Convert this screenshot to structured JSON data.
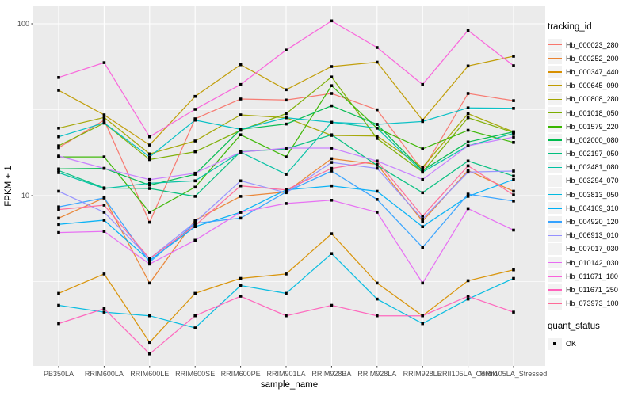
{
  "chart_data": {
    "type": "line",
    "title": "",
    "xlabel": "sample_name",
    "ylabel": "FPKM + 1",
    "y_scale": "log10",
    "ylim": [
      1.02,
      118
    ],
    "y_ticks": [
      "100",
      "10"
    ],
    "y_tick_values": [
      100,
      10
    ],
    "y_minor_tick_values": [
      31.6,
      3.16
    ],
    "grid": true,
    "panel_bg": "#EBEBEB",
    "grid_color": "#FFFFFF",
    "marker": {
      "shape": "square",
      "color": "#000000",
      "size": 4
    },
    "legend_title": "tracking_id",
    "legend_position": "right",
    "legend2_title": "quant_status",
    "legend2_items": [
      {
        "label": "OK",
        "marker": "black-square"
      }
    ],
    "x_categories": [
      "PB350LA",
      "RRIM600LA",
      "RRIM600LE",
      "RRIM600SE",
      "RRIM600PE",
      "RRIM901LA",
      "RRIM928BA",
      "RRIM928LA",
      "RRIM928LE",
      "RRII105LA_Control",
      "RRII105LA_Stressed"
    ],
    "series": [
      {
        "name": "Hb_000023_280",
        "color": "#F8766D",
        "values": [
          19.0,
          27.5,
          7.0,
          28.0,
          36.5,
          36.0,
          39.3,
          31.6,
          14.0,
          39.3,
          35.7
        ]
      },
      {
        "name": "Hb_000252_200",
        "color": "#EA8331",
        "values": [
          7.4,
          9.7,
          3.1,
          7.2,
          9.9,
          10.5,
          16.4,
          15.2,
          7.1,
          14.0,
          10.6
        ]
      },
      {
        "name": "Hb_000347_440",
        "color": "#D89000",
        "values": [
          2.7,
          3.5,
          1.4,
          2.7,
          3.3,
          3.5,
          6.0,
          3.1,
          2.0,
          3.2,
          3.7
        ]
      },
      {
        "name": "Hb_000645_090",
        "color": "#C09B00",
        "values": [
          41.0,
          29.5,
          19.7,
          37.8,
          57.8,
          41.3,
          56.4,
          59.8,
          27.5,
          56.8,
          64.7
        ]
      },
      {
        "name": "Hb_000808_280",
        "color": "#A3A500",
        "values": [
          24.7,
          28.5,
          17.5,
          20.8,
          29.5,
          28.4,
          22.4,
          22.2,
          14.6,
          30.0,
          23.5
        ]
      },
      {
        "name": "Hb_001018_050",
        "color": "#7CAE00",
        "values": [
          19.5,
          26.4,
          16.2,
          18.0,
          24.0,
          30.0,
          49.0,
          21.5,
          13.7,
          28.4,
          23.3
        ]
      },
      {
        "name": "Hb_001579_220",
        "color": "#39B600",
        "values": [
          16.8,
          16.8,
          8.0,
          11.2,
          22.6,
          16.8,
          43.6,
          24.7,
          18.7,
          24.0,
          20.4
        ]
      },
      {
        "name": "Hb_002000_080",
        "color": "#00BB4E",
        "values": [
          14.3,
          14.4,
          11.5,
          13.3,
          24.3,
          26.1,
          33.3,
          26.0,
          14.0,
          20.5,
          23.5
        ]
      },
      {
        "name": "Hb_002197_050",
        "color": "#00BF7D",
        "values": [
          14.0,
          11.1,
          11.0,
          9.9,
          18.0,
          18.7,
          22.6,
          15.0,
          10.4,
          15.9,
          13.0
        ]
      },
      {
        "name": "Hb_002481_080",
        "color": "#00C1A3",
        "values": [
          13.6,
          11.0,
          11.8,
          12.2,
          17.9,
          13.3,
          26.7,
          24.7,
          13.7,
          19.5,
          23.0
        ]
      },
      {
        "name": "Hb_003294_070",
        "color": "#00BFC4",
        "values": [
          22.0,
          26.5,
          16.8,
          27.5,
          24.3,
          28.4,
          26.7,
          26.0,
          27.0,
          32.4,
          32.2
        ]
      },
      {
        "name": "Hb_003813_050",
        "color": "#00BAE0",
        "values": [
          2.3,
          2.1,
          2.0,
          1.7,
          3.0,
          2.7,
          4.6,
          2.5,
          1.8,
          2.5,
          3.3
        ]
      },
      {
        "name": "Hb_004109_310",
        "color": "#00B0F6",
        "values": [
          6.8,
          7.2,
          4.2,
          6.6,
          8.0,
          10.8,
          11.4,
          10.6,
          6.6,
          9.9,
          12.4
        ]
      },
      {
        "name": "Hb_004920_120",
        "color": "#35A2FF",
        "values": [
          8.6,
          9.7,
          4.1,
          6.9,
          7.4,
          10.5,
          13.9,
          9.5,
          5.0,
          10.2,
          9.3
        ]
      },
      {
        "name": "Hb_006913_010",
        "color": "#9590FF",
        "values": [
          10.6,
          8.0,
          4.3,
          7.0,
          12.2,
          10.4,
          15.6,
          14.4,
          7.3,
          13.7,
          13.9
        ]
      },
      {
        "name": "Hb_007017_030",
        "color": "#C77CFF",
        "values": [
          17.0,
          14.4,
          12.4,
          13.5,
          17.9,
          18.9,
          18.9,
          15.9,
          12.4,
          19.5,
          21.9
        ]
      },
      {
        "name": "Hb_010142_030",
        "color": "#E76BF3",
        "values": [
          6.1,
          6.2,
          4.0,
          5.5,
          8.0,
          9.0,
          9.4,
          8.0,
          3.1,
          8.4,
          6.3
        ]
      },
      {
        "name": "Hb_011671_180",
        "color": "#FA62DB",
        "values": [
          48.7,
          59.4,
          22.0,
          31.8,
          44.3,
          70.3,
          104.0,
          72.7,
          44.3,
          91.5,
          57.0
        ]
      },
      {
        "name": "Hb_011671_250",
        "color": "#FF62BC",
        "values": [
          1.8,
          2.2,
          1.2,
          2.0,
          2.6,
          2.0,
          2.3,
          2.0,
          2.0,
          2.6,
          2.1
        ]
      },
      {
        "name": "Hb_073973_100",
        "color": "#FF6A98",
        "values": [
          8.3,
          8.8,
          4.3,
          6.7,
          11.4,
          10.8,
          14.4,
          15.9,
          7.6,
          14.9,
          10.1
        ]
      }
    ]
  }
}
